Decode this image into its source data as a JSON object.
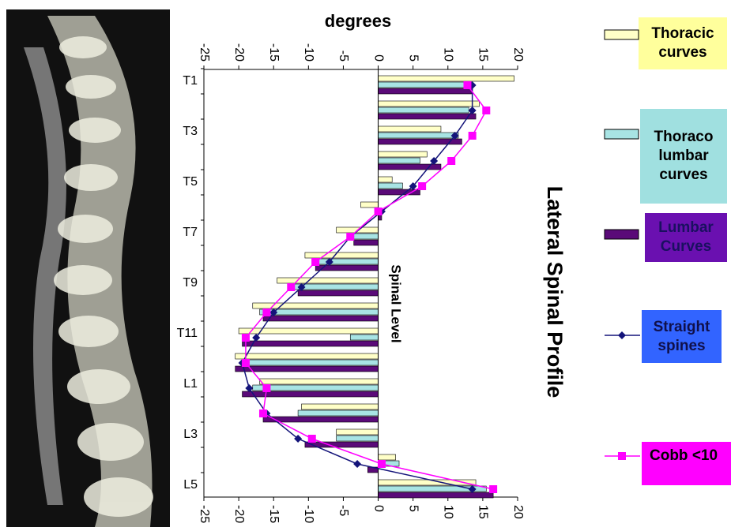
{
  "chart_data": {
    "type": "bar",
    "orientation": "horizontal",
    "title": "Lateral Spinal Profile",
    "x_label": "degrees",
    "y_label": "Spinal Level",
    "categories": [
      "T1",
      null,
      "T3",
      null,
      "T5",
      null,
      "T7",
      null,
      "T9",
      null,
      "T11",
      null,
      "L1",
      null,
      "L3",
      null,
      "L5"
    ],
    "series": [
      {
        "name": "Thoracic curves",
        "type": "bar",
        "color": "#ffffc8",
        "values": [
          19.5,
          14.5,
          9,
          7,
          2,
          -2.5,
          -6,
          -10.5,
          -14.5,
          -18,
          -20,
          -20.5,
          -17,
          -11,
          -6,
          2.5,
          14
        ]
      },
      {
        "name": "Thoraco lumbar curves",
        "type": "bar",
        "color": "#a8e4e4",
        "values": [
          13.5,
          13,
          11.5,
          6,
          3.5,
          0,
          -4,
          -9.5,
          -12.5,
          -17,
          -4,
          -19.5,
          -18,
          -11.5,
          -6,
          3,
          15.5
        ]
      },
      {
        "name": "Lumbar Curves",
        "type": "bar",
        "color": "#5a0a78",
        "values": [
          13.5,
          14,
          12,
          9,
          6,
          0.5,
          -3.5,
          -9,
          -11.5,
          -16.5,
          -19.5,
          -20.5,
          -19.5,
          -16.5,
          -10.5,
          -1.5,
          16.5
        ]
      },
      {
        "name": "Straight spines",
        "type": "line",
        "color": "#14147a",
        "values": [
          13.5,
          13.5,
          11,
          8,
          5,
          0.5,
          -4,
          -7,
          -11,
          -15,
          -17.5,
          -19.5,
          -18.5,
          -16,
          -11.5,
          -3,
          13.5
        ]
      },
      {
        "name": "Cobb <10",
        "type": "line",
        "color": "#ff00ff",
        "values": [
          12.8,
          15.5,
          13.5,
          10.5,
          6.3,
          0,
          -4,
          -9,
          -12.5,
          -16,
          -19,
          -19,
          -16,
          -16.5,
          -9.5,
          0.5,
          16.5
        ]
      }
    ],
    "legend_colors": [
      "#ffff9c",
      "#a0e0e0",
      "#6a10b0",
      "#3264ff",
      "#ff00ff"
    ],
    "xlim": [
      -25,
      20
    ],
    "xticks": [
      -25,
      -20,
      -15,
      -10,
      -5,
      0,
      5,
      10,
      15,
      20
    ],
    "grid": false
  }
}
